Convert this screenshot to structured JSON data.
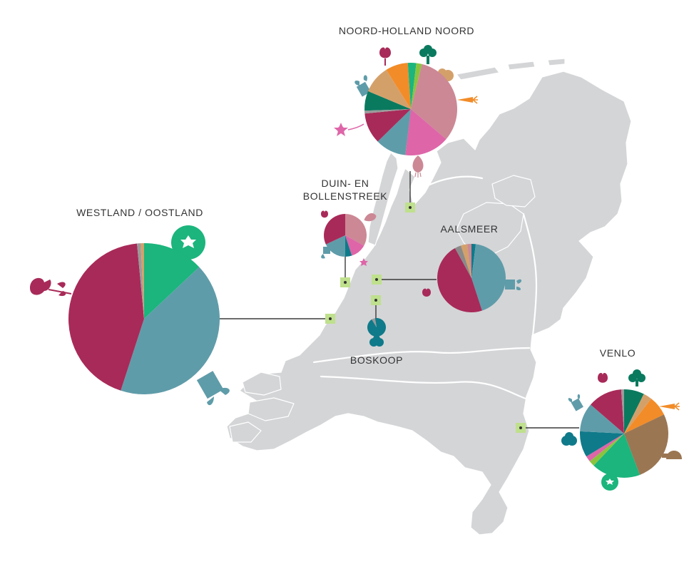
{
  "colors": {
    "land": "#d4d5d7",
    "water": "#ffffff",
    "connector": "#3a3a3a",
    "location_marker": "#bfe08c",
    "marker_dot": "#333333",
    "label": "#333333"
  },
  "regions": [
    {
      "id": "noord-holland-noord",
      "label_lines": [
        "NOORD-HOLLAND NOORD"
      ],
      "icons": [
        "tulip-icon",
        "broccoli-icon",
        "mushroom-icon",
        "carrot-icon",
        "onion-icon",
        "flower-icon",
        "leaf-pot-icon"
      ],
      "slices": [
        {
          "color": "#0a7a5f",
          "value": 7
        },
        {
          "color": "#d4a06a",
          "value": 10
        },
        {
          "color": "#f28c28",
          "value": 8
        },
        {
          "color": "#1bb57d",
          "value": 3
        },
        {
          "color": "#8ac43f",
          "value": 2
        },
        {
          "color": "#cc8895",
          "value": 33
        },
        {
          "color": "#de65a8",
          "value": 16
        },
        {
          "color": "#5f9ca9",
          "value": 11
        },
        {
          "color": "#a82a58",
          "value": 11
        },
        {
          "color": "#9a9a9a",
          "value": 1
        }
      ]
    },
    {
      "id": "duin-en-bollenstreek",
      "label_lines": [
        "DUIN- EN",
        "BOLLENSTREEK"
      ],
      "icons": [
        "tulip-icon",
        "onion-icon",
        "leaf-pot-icon",
        "flower-icon"
      ],
      "slices": [
        {
          "color": "#cc8895",
          "value": 33
        },
        {
          "color": "#de65a8",
          "value": 12
        },
        {
          "color": "#0f7a8a",
          "value": 5
        },
        {
          "color": "#5f9ca9",
          "value": 18
        },
        {
          "color": "#a82a58",
          "value": 32
        }
      ]
    },
    {
      "id": "aalsmeer",
      "label_lines": [
        "AALSMEER"
      ],
      "icons": [
        "tulip-icon",
        "leaf-pot-icon"
      ],
      "slices": [
        {
          "color": "#0f7a8a",
          "value": 2
        },
        {
          "color": "#5f9ca9",
          "value": 43
        },
        {
          "color": "#a82a58",
          "value": 47
        },
        {
          "color": "#8a8a8a",
          "value": 3
        },
        {
          "color": "#d4a06a",
          "value": 3
        },
        {
          "color": "#cc8895",
          "value": 2
        }
      ]
    },
    {
      "id": "boskoop",
      "label_lines": [
        "BOSKOOP"
      ],
      "icons": [
        "tree-icon"
      ],
      "slices": [
        {
          "color": "#0f7a8a",
          "value": 94
        },
        {
          "color": "#9a9a9a",
          "value": 6
        }
      ]
    },
    {
      "id": "westland-oostland",
      "label_lines": [
        "WESTLAND / OOSTLAND"
      ],
      "icons": [
        "tulip-icon",
        "tomato-icon",
        "leaf-pot-icon"
      ],
      "slices": [
        {
          "color": "#1bb57d",
          "value": 13
        },
        {
          "color": "#5f9ca9",
          "value": 42
        },
        {
          "color": "#a82a58",
          "value": 43.5
        },
        {
          "color": "#9a9a9a",
          "value": 0.8
        },
        {
          "color": "#d4a06a",
          "value": 0.7
        }
      ]
    },
    {
      "id": "venlo",
      "label_lines": [
        "VENLO"
      ],
      "icons": [
        "tulip-icon",
        "broccoli-icon",
        "carrot-icon",
        "mushroom-icon",
        "tomato-icon",
        "tree-icon",
        "leaf-pot-icon"
      ],
      "slices": [
        {
          "color": "#0a7a5f",
          "value": 7
        },
        {
          "color": "#d4a06a",
          "value": 3
        },
        {
          "color": "#f28c28",
          "value": 7
        },
        {
          "color": "#9b7653",
          "value": 25
        },
        {
          "color": "#1bb57d",
          "value": 17
        },
        {
          "color": "#8ac43f",
          "value": 2
        },
        {
          "color": "#de65a8",
          "value": 2
        },
        {
          "color": "#0f7a8a",
          "value": 9
        },
        {
          "color": "#5f9ca9",
          "value": 10
        },
        {
          "color": "#a82a58",
          "value": 12
        },
        {
          "color": "#9a9a9a",
          "value": 1
        }
      ]
    }
  ]
}
